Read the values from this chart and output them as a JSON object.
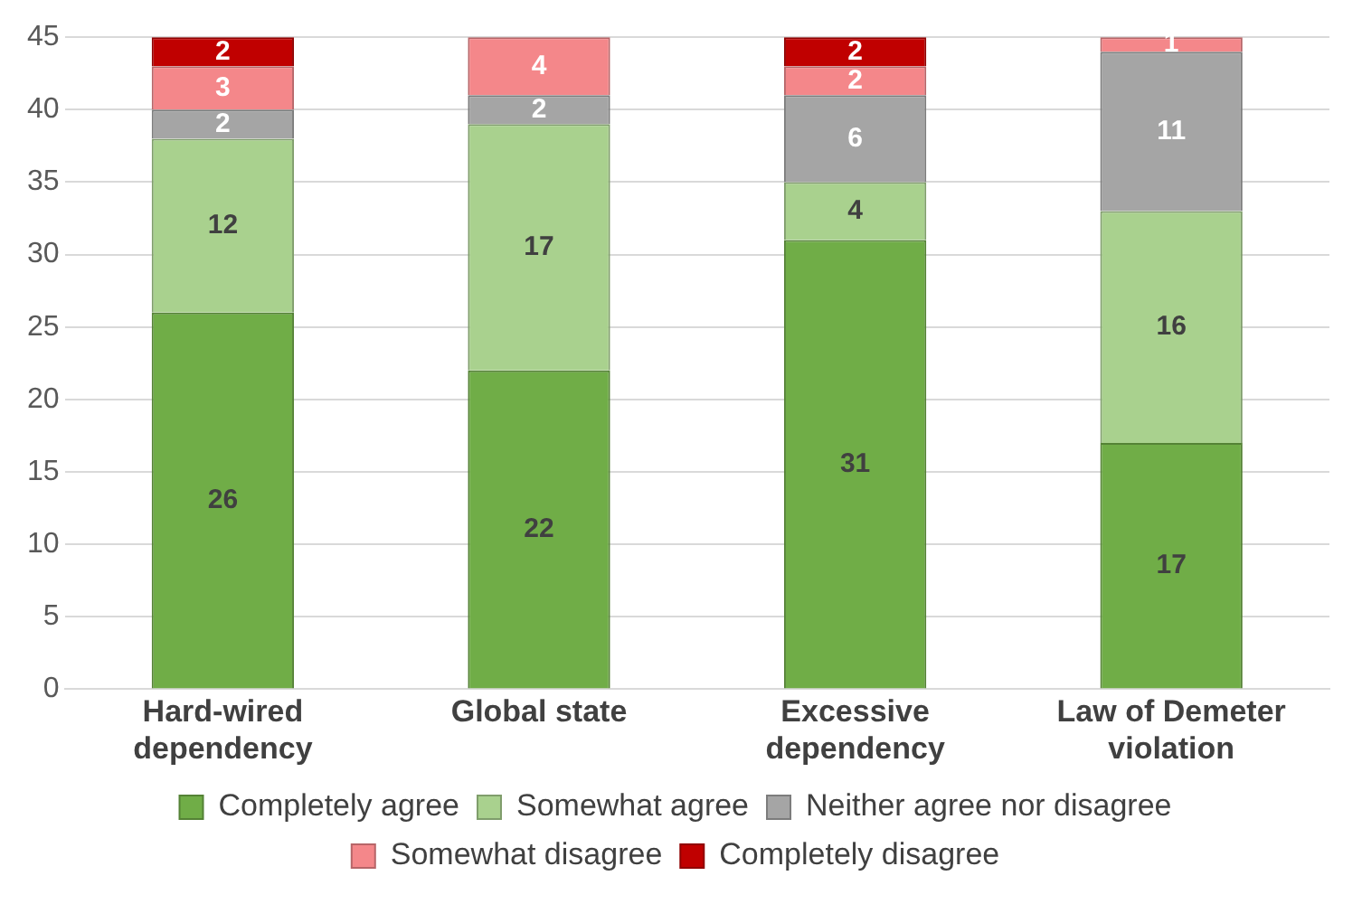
{
  "chart_data": {
    "type": "bar",
    "stacked": true,
    "categories": [
      "Hard-wired dependency",
      "Global state",
      "Excessive dependency",
      "Law of Demeter violation"
    ],
    "series": [
      {
        "name": "Completely agree",
        "color": "#70ad47",
        "values": [
          26,
          22,
          31,
          17
        ]
      },
      {
        "name": "Somewhat agree",
        "color": "#a9d18e",
        "values": [
          12,
          17,
          4,
          16
        ]
      },
      {
        "name": "Neither agree nor disagree",
        "color": "#a5a5a5",
        "values": [
          2,
          2,
          6,
          11
        ]
      },
      {
        "name": "Somewhat disagree",
        "color": "#f4878a",
        "values": [
          3,
          4,
          2,
          1
        ]
      },
      {
        "name": "Completely disagree",
        "color": "#c00000",
        "values": [
          2,
          null,
          2,
          null
        ]
      }
    ],
    "ylim": [
      0,
      45
    ],
    "yticks": [
      0,
      5,
      10,
      15,
      20,
      25,
      30,
      35,
      40,
      45
    ],
    "grid": "y",
    "legend": "bottom",
    "data_labels": true
  }
}
